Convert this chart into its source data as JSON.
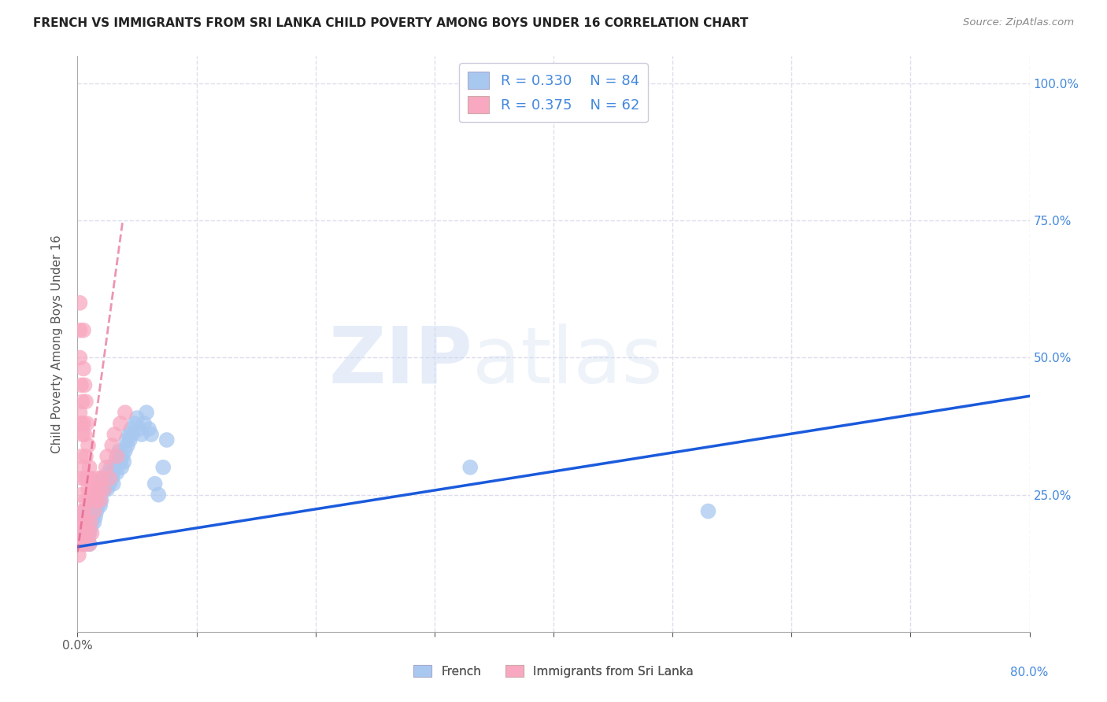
{
  "title": "FRENCH VS IMMIGRANTS FROM SRI LANKA CHILD POVERTY AMONG BOYS UNDER 16 CORRELATION CHART",
  "source": "Source: ZipAtlas.com",
  "ylabel": "Child Poverty Among Boys Under 16",
  "xlim": [
    0.0,
    0.8
  ],
  "ylim": [
    0.0,
    1.05
  ],
  "xticks": [
    0.0,
    0.1,
    0.2,
    0.3,
    0.4,
    0.5,
    0.6,
    0.7,
    0.8
  ],
  "yticks": [
    0.0,
    0.25,
    0.5,
    0.75,
    1.0
  ],
  "french_color": "#a8c8f0",
  "sri_lanka_color": "#f8a8c0",
  "french_line_color": "#1a5adc",
  "sri_lanka_line_color": "#e05080",
  "legend_text_color": "#4488dd",
  "title_color": "#222222",
  "watermark_zip": "ZIP",
  "watermark_atlas": "atlas",
  "french_R": "0.330",
  "french_N": "84",
  "sri_lanka_R": "0.375",
  "sri_lanka_N": "62",
  "french_scatter_x": [
    0.003,
    0.004,
    0.005,
    0.005,
    0.005,
    0.005,
    0.006,
    0.006,
    0.007,
    0.007,
    0.007,
    0.007,
    0.008,
    0.008,
    0.008,
    0.009,
    0.009,
    0.009,
    0.01,
    0.01,
    0.01,
    0.01,
    0.011,
    0.011,
    0.012,
    0.012,
    0.013,
    0.013,
    0.014,
    0.014,
    0.015,
    0.015,
    0.016,
    0.016,
    0.017,
    0.017,
    0.018,
    0.018,
    0.019,
    0.019,
    0.02,
    0.02,
    0.021,
    0.022,
    0.023,
    0.024,
    0.025,
    0.025,
    0.026,
    0.027,
    0.028,
    0.029,
    0.03,
    0.03,
    0.031,
    0.032,
    0.033,
    0.034,
    0.035,
    0.036,
    0.037,
    0.038,
    0.039,
    0.04,
    0.041,
    0.042,
    0.043,
    0.044,
    0.045,
    0.046,
    0.048,
    0.05,
    0.052,
    0.054,
    0.056,
    0.058,
    0.06,
    0.062,
    0.065,
    0.068,
    0.072,
    0.075,
    0.33,
    0.53
  ],
  "french_scatter_y": [
    0.2,
    0.18,
    0.19,
    0.21,
    0.17,
    0.16,
    0.2,
    0.18,
    0.21,
    0.19,
    0.17,
    0.22,
    0.2,
    0.18,
    0.16,
    0.21,
    0.19,
    0.17,
    0.22,
    0.2,
    0.18,
    0.16,
    0.21,
    0.19,
    0.22,
    0.2,
    0.23,
    0.21,
    0.22,
    0.2,
    0.23,
    0.21,
    0.24,
    0.22,
    0.25,
    0.23,
    0.26,
    0.24,
    0.25,
    0.23,
    0.26,
    0.24,
    0.27,
    0.28,
    0.26,
    0.27,
    0.28,
    0.26,
    0.29,
    0.27,
    0.3,
    0.28,
    0.29,
    0.27,
    0.3,
    0.31,
    0.29,
    0.32,
    0.33,
    0.31,
    0.3,
    0.32,
    0.31,
    0.33,
    0.35,
    0.34,
    0.36,
    0.35,
    0.37,
    0.36,
    0.38,
    0.39,
    0.37,
    0.36,
    0.38,
    0.4,
    0.37,
    0.36,
    0.27,
    0.25,
    0.3,
    0.35,
    0.3,
    0.22
  ],
  "sri_lanka_scatter_x": [
    0.001,
    0.001,
    0.001,
    0.002,
    0.002,
    0.002,
    0.002,
    0.002,
    0.003,
    0.003,
    0.003,
    0.003,
    0.003,
    0.004,
    0.004,
    0.004,
    0.004,
    0.004,
    0.005,
    0.005,
    0.005,
    0.005,
    0.005,
    0.005,
    0.006,
    0.006,
    0.006,
    0.006,
    0.007,
    0.007,
    0.007,
    0.007,
    0.008,
    0.008,
    0.008,
    0.009,
    0.009,
    0.009,
    0.01,
    0.01,
    0.01,
    0.011,
    0.011,
    0.012,
    0.012,
    0.013,
    0.014,
    0.015,
    0.016,
    0.017,
    0.018,
    0.019,
    0.02,
    0.022,
    0.024,
    0.025,
    0.027,
    0.029,
    0.031,
    0.033,
    0.036,
    0.04
  ],
  "sri_lanka_scatter_y": [
    0.2,
    0.17,
    0.14,
    0.6,
    0.55,
    0.5,
    0.4,
    0.2,
    0.45,
    0.38,
    0.32,
    0.25,
    0.18,
    0.42,
    0.36,
    0.28,
    0.22,
    0.16,
    0.55,
    0.48,
    0.38,
    0.3,
    0.22,
    0.16,
    0.45,
    0.36,
    0.28,
    0.2,
    0.42,
    0.32,
    0.24,
    0.18,
    0.38,
    0.28,
    0.2,
    0.34,
    0.26,
    0.18,
    0.3,
    0.24,
    0.16,
    0.28,
    0.2,
    0.26,
    0.18,
    0.24,
    0.22,
    0.26,
    0.24,
    0.28,
    0.26,
    0.24,
    0.28,
    0.26,
    0.3,
    0.32,
    0.28,
    0.34,
    0.36,
    0.32,
    0.38,
    0.4
  ],
  "french_trend_x": [
    0.0,
    0.8
  ],
  "french_trend_y": [
    0.155,
    0.43
  ],
  "sri_lanka_trend_x": [
    0.0,
    0.038
  ],
  "sri_lanka_trend_y": [
    0.145,
    0.75
  ],
  "grid_color": "#ddddee",
  "axis_color": "#aaaaaa",
  "yaxis_right_color": "#4488dd",
  "background_color": "#ffffff"
}
